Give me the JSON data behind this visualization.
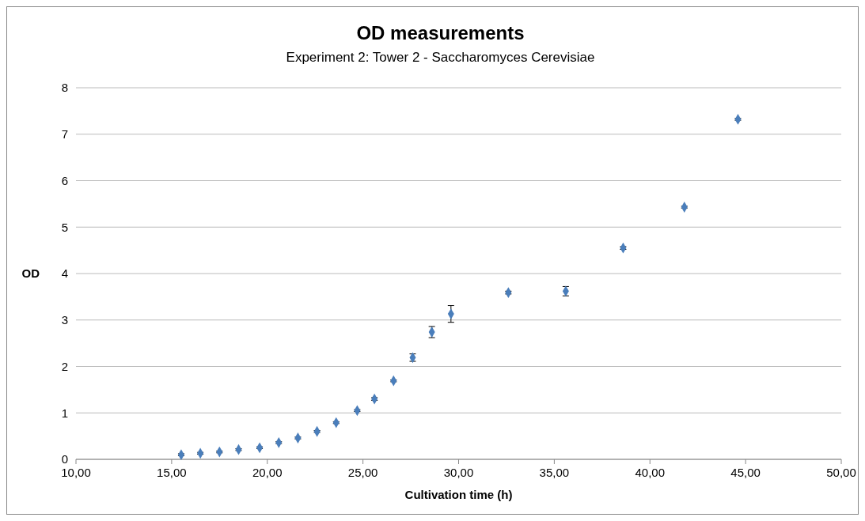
{
  "chart_data": {
    "type": "scatter",
    "title": "OD measurements",
    "subtitle": "Experiment 2: Tower 2 - Saccharomyces Cerevisiae",
    "xlabel": "Cultivation time (h)",
    "ylabel": "OD",
    "x": [
      15.5,
      16.5,
      17.5,
      18.5,
      19.6,
      20.6,
      21.6,
      22.6,
      23.6,
      24.7,
      25.6,
      26.6,
      27.6,
      28.6,
      29.6,
      32.6,
      35.6,
      38.6,
      41.8,
      44.6
    ],
    "series": [
      {
        "color": "#4a7ebb",
        "values": [
          0.1,
          0.13,
          0.16,
          0.21,
          0.25,
          0.36,
          0.46,
          0.6,
          0.79,
          1.05,
          1.3,
          1.69,
          2.19,
          2.74,
          3.13,
          3.59,
          3.62,
          4.55,
          5.43,
          7.32
        ],
        "errors": [
          0.02,
          0.02,
          0.02,
          0.02,
          0.02,
          0.02,
          0.02,
          0.02,
          0.02,
          0.02,
          0.03,
          0.02,
          0.08,
          0.12,
          0.18,
          0.03,
          0.1,
          0.03,
          0.02,
          0.02
        ]
      }
    ],
    "xlim": [
      10,
      50
    ],
    "xticks": [
      {
        "value": 10,
        "label": "10,00"
      },
      {
        "value": 15,
        "label": "15,00"
      },
      {
        "value": 20,
        "label": "20,00"
      },
      {
        "value": 25,
        "label": "25,00"
      },
      {
        "value": 30,
        "label": "30,00"
      },
      {
        "value": 35,
        "label": "35,00"
      },
      {
        "value": 40,
        "label": "40,00"
      },
      {
        "value": 45,
        "label": "45,00"
      },
      {
        "value": 50,
        "label": "50,00"
      }
    ],
    "ylim": [
      0,
      8
    ],
    "yticks": [
      0,
      1,
      2,
      3,
      4,
      5,
      6,
      7,
      8
    ],
    "grid": "y",
    "marker": "diamond"
  }
}
